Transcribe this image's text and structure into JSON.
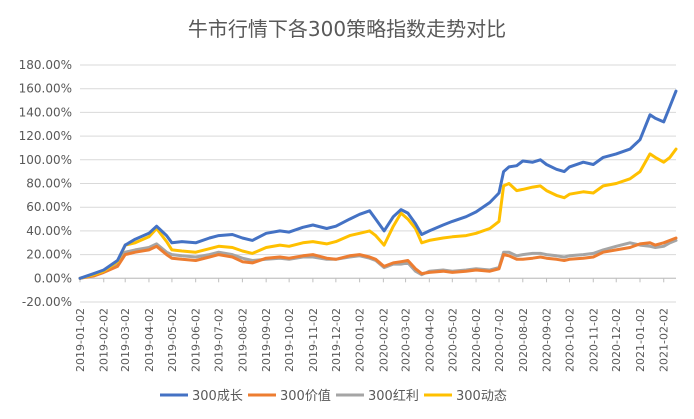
{
  "chart_data": {
    "type": "line",
    "title": "牛市行情下各300策略指数走势对比",
    "xlabel": "",
    "ylabel": "",
    "ylim": [
      -0.2,
      1.8
    ],
    "y_ticks": [
      "-20.00%",
      "0.00%",
      "20.00%",
      "40.00%",
      "60.00%",
      "80.00%",
      "100.00%",
      "120.00%",
      "140.00%",
      "160.00%",
      "180.00%"
    ],
    "y_tick_values": [
      -0.2,
      0,
      0.2,
      0.4,
      0.6,
      0.8,
      1.0,
      1.2,
      1.4,
      1.6,
      1.8
    ],
    "x_ticks": [
      "2019-01-02",
      "2019-02-02",
      "2019-03-02",
      "2019-04-02",
      "2019-05-02",
      "2019-06-02",
      "2019-07-02",
      "2019-08-02",
      "2019-09-02",
      "2019-10-02",
      "2019-11-02",
      "2019-12-02",
      "2020-01-02",
      "2020-02-02",
      "2020-03-02",
      "2020-04-02",
      "2020-05-02",
      "2020-06-02",
      "2020-07-02",
      "2020-08-02",
      "2020-09-02",
      "2020-10-02",
      "2020-11-02",
      "2020-12-02",
      "2021-01-02",
      "2021-02-02"
    ],
    "x_range": [
      "2019-01-02",
      "2021-02-18"
    ],
    "grid": true,
    "legend_position": "bottom",
    "colors": {
      "300成长": "#4472C4",
      "300价值": "#ED7D31",
      "300红利": "#A5A5A5",
      "300动态": "#FFC000",
      "grid": "#D9D9D9",
      "axis_text": "#595959",
      "title": "#595959"
    },
    "series": [
      {
        "name": "300成长",
        "points": [
          [
            "2019-01-02",
            0.0
          ],
          [
            "2019-01-20",
            0.04
          ],
          [
            "2019-02-02",
            0.07
          ],
          [
            "2019-02-20",
            0.15
          ],
          [
            "2019-03-02",
            0.28
          ],
          [
            "2019-03-15",
            0.33
          ],
          [
            "2019-04-02",
            0.38
          ],
          [
            "2019-04-12",
            0.44
          ],
          [
            "2019-04-25",
            0.36
          ],
          [
            "2019-05-02",
            0.3
          ],
          [
            "2019-05-15",
            0.31
          ],
          [
            "2019-06-02",
            0.3
          ],
          [
            "2019-06-20",
            0.34
          ],
          [
            "2019-07-02",
            0.36
          ],
          [
            "2019-07-20",
            0.37
          ],
          [
            "2019-08-02",
            0.34
          ],
          [
            "2019-08-15",
            0.32
          ],
          [
            "2019-09-02",
            0.38
          ],
          [
            "2019-09-20",
            0.4
          ],
          [
            "2019-10-02",
            0.39
          ],
          [
            "2019-10-20",
            0.43
          ],
          [
            "2019-11-02",
            0.45
          ],
          [
            "2019-11-20",
            0.42
          ],
          [
            "2019-12-02",
            0.44
          ],
          [
            "2019-12-20",
            0.5
          ],
          [
            "2020-01-02",
            0.54
          ],
          [
            "2020-01-15",
            0.57
          ],
          [
            "2020-01-23",
            0.5
          ],
          [
            "2020-02-03",
            0.4
          ],
          [
            "2020-02-15",
            0.52
          ],
          [
            "2020-02-25",
            0.58
          ],
          [
            "2020-03-05",
            0.55
          ],
          [
            "2020-03-15",
            0.46
          ],
          [
            "2020-03-23",
            0.37
          ],
          [
            "2020-04-02",
            0.4
          ],
          [
            "2020-04-20",
            0.45
          ],
          [
            "2020-05-02",
            0.48
          ],
          [
            "2020-05-20",
            0.52
          ],
          [
            "2020-06-02",
            0.56
          ],
          [
            "2020-06-20",
            0.64
          ],
          [
            "2020-07-02",
            0.72
          ],
          [
            "2020-07-08",
            0.9
          ],
          [
            "2020-07-15",
            0.94
          ],
          [
            "2020-07-25",
            0.95
          ],
          [
            "2020-08-02",
            0.99
          ],
          [
            "2020-08-15",
            0.98
          ],
          [
            "2020-08-25",
            1.0
          ],
          [
            "2020-09-02",
            0.96
          ],
          [
            "2020-09-15",
            0.92
          ],
          [
            "2020-09-25",
            0.9
          ],
          [
            "2020-10-02",
            0.94
          ],
          [
            "2020-10-20",
            0.98
          ],
          [
            "2020-11-02",
            0.96
          ],
          [
            "2020-11-15",
            1.02
          ],
          [
            "2020-12-02",
            1.05
          ],
          [
            "2020-12-20",
            1.09
          ],
          [
            "2021-01-02",
            1.17
          ],
          [
            "2021-01-15",
            1.38
          ],
          [
            "2021-01-22",
            1.35
          ],
          [
            "2021-02-02",
            1.32
          ],
          [
            "2021-02-10",
            1.45
          ],
          [
            "2021-02-18",
            1.58
          ]
        ]
      },
      {
        "name": "300价值",
        "points": [
          [
            "2019-01-02",
            0.0
          ],
          [
            "2019-01-20",
            0.02
          ],
          [
            "2019-02-02",
            0.05
          ],
          [
            "2019-02-20",
            0.1
          ],
          [
            "2019-03-02",
            0.2
          ],
          [
            "2019-03-15",
            0.22
          ],
          [
            "2019-04-02",
            0.24
          ],
          [
            "2019-04-12",
            0.27
          ],
          [
            "2019-04-25",
            0.2
          ],
          [
            "2019-05-02",
            0.17
          ],
          [
            "2019-05-15",
            0.16
          ],
          [
            "2019-06-02",
            0.15
          ],
          [
            "2019-06-20",
            0.18
          ],
          [
            "2019-07-02",
            0.2
          ],
          [
            "2019-07-20",
            0.18
          ],
          [
            "2019-08-02",
            0.14
          ],
          [
            "2019-08-15",
            0.13
          ],
          [
            "2019-09-02",
            0.17
          ],
          [
            "2019-09-20",
            0.18
          ],
          [
            "2019-10-02",
            0.17
          ],
          [
            "2019-10-20",
            0.19
          ],
          [
            "2019-11-02",
            0.2
          ],
          [
            "2019-11-20",
            0.17
          ],
          [
            "2019-12-02",
            0.16
          ],
          [
            "2019-12-20",
            0.19
          ],
          [
            "2020-01-02",
            0.2
          ],
          [
            "2020-01-15",
            0.18
          ],
          [
            "2020-01-23",
            0.16
          ],
          [
            "2020-02-03",
            0.1
          ],
          [
            "2020-02-15",
            0.13
          ],
          [
            "2020-02-25",
            0.14
          ],
          [
            "2020-03-05",
            0.15
          ],
          [
            "2020-03-15",
            0.08
          ],
          [
            "2020-03-23",
            0.04
          ],
          [
            "2020-04-02",
            0.05
          ],
          [
            "2020-04-20",
            0.06
          ],
          [
            "2020-05-02",
            0.05
          ],
          [
            "2020-05-20",
            0.06
          ],
          [
            "2020-06-02",
            0.07
          ],
          [
            "2020-06-20",
            0.06
          ],
          [
            "2020-07-02",
            0.08
          ],
          [
            "2020-07-08",
            0.2
          ],
          [
            "2020-07-15",
            0.19
          ],
          [
            "2020-07-25",
            0.16
          ],
          [
            "2020-08-02",
            0.16
          ],
          [
            "2020-08-15",
            0.17
          ],
          [
            "2020-08-25",
            0.18
          ],
          [
            "2020-09-02",
            0.17
          ],
          [
            "2020-09-15",
            0.16
          ],
          [
            "2020-09-25",
            0.15
          ],
          [
            "2020-10-02",
            0.16
          ],
          [
            "2020-10-20",
            0.17
          ],
          [
            "2020-11-02",
            0.18
          ],
          [
            "2020-11-15",
            0.22
          ],
          [
            "2020-12-02",
            0.24
          ],
          [
            "2020-12-20",
            0.26
          ],
          [
            "2021-01-02",
            0.29
          ],
          [
            "2021-01-15",
            0.3
          ],
          [
            "2021-01-22",
            0.28
          ],
          [
            "2021-02-02",
            0.3
          ],
          [
            "2021-02-10",
            0.32
          ],
          [
            "2021-02-18",
            0.34
          ]
        ]
      },
      {
        "name": "300红利",
        "points": [
          [
            "2019-01-02",
            0.0
          ],
          [
            "2019-01-20",
            0.03
          ],
          [
            "2019-02-02",
            0.06
          ],
          [
            "2019-02-20",
            0.12
          ],
          [
            "2019-03-02",
            0.22
          ],
          [
            "2019-03-15",
            0.24
          ],
          [
            "2019-04-02",
            0.26
          ],
          [
            "2019-04-12",
            0.29
          ],
          [
            "2019-04-25",
            0.22
          ],
          [
            "2019-05-02",
            0.2
          ],
          [
            "2019-05-15",
            0.19
          ],
          [
            "2019-06-02",
            0.18
          ],
          [
            "2019-06-20",
            0.2
          ],
          [
            "2019-07-02",
            0.22
          ],
          [
            "2019-07-20",
            0.2
          ],
          [
            "2019-08-02",
            0.17
          ],
          [
            "2019-08-15",
            0.15
          ],
          [
            "2019-09-02",
            0.16
          ],
          [
            "2019-09-20",
            0.17
          ],
          [
            "2019-10-02",
            0.16
          ],
          [
            "2019-10-20",
            0.18
          ],
          [
            "2019-11-02",
            0.18
          ],
          [
            "2019-11-20",
            0.16
          ],
          [
            "2019-12-02",
            0.16
          ],
          [
            "2019-12-20",
            0.18
          ],
          [
            "2020-01-02",
            0.19
          ],
          [
            "2020-01-15",
            0.17
          ],
          [
            "2020-01-23",
            0.15
          ],
          [
            "2020-02-03",
            0.09
          ],
          [
            "2020-02-15",
            0.12
          ],
          [
            "2020-02-25",
            0.12
          ],
          [
            "2020-03-05",
            0.13
          ],
          [
            "2020-03-15",
            0.06
          ],
          [
            "2020-03-23",
            0.03
          ],
          [
            "2020-04-02",
            0.06
          ],
          [
            "2020-04-20",
            0.07
          ],
          [
            "2020-05-02",
            0.06
          ],
          [
            "2020-05-20",
            0.07
          ],
          [
            "2020-06-02",
            0.08
          ],
          [
            "2020-06-20",
            0.07
          ],
          [
            "2020-07-02",
            0.09
          ],
          [
            "2020-07-08",
            0.22
          ],
          [
            "2020-07-15",
            0.22
          ],
          [
            "2020-07-25",
            0.19
          ],
          [
            "2020-08-02",
            0.2
          ],
          [
            "2020-08-15",
            0.21
          ],
          [
            "2020-08-25",
            0.21
          ],
          [
            "2020-09-02",
            0.2
          ],
          [
            "2020-09-15",
            0.19
          ],
          [
            "2020-09-25",
            0.18
          ],
          [
            "2020-10-02",
            0.19
          ],
          [
            "2020-10-20",
            0.2
          ],
          [
            "2020-11-02",
            0.21
          ],
          [
            "2020-11-15",
            0.24
          ],
          [
            "2020-12-02",
            0.27
          ],
          [
            "2020-12-20",
            0.3
          ],
          [
            "2021-01-02",
            0.28
          ],
          [
            "2021-01-15",
            0.27
          ],
          [
            "2021-01-22",
            0.26
          ],
          [
            "2021-02-02",
            0.27
          ],
          [
            "2021-02-10",
            0.3
          ],
          [
            "2021-02-18",
            0.32
          ]
        ]
      },
      {
        "name": "300动态",
        "points": [
          [
            "2019-01-02",
            0.0
          ],
          [
            "2019-01-20",
            0.03
          ],
          [
            "2019-02-02",
            0.06
          ],
          [
            "2019-02-20",
            0.14
          ],
          [
            "2019-03-02",
            0.28
          ],
          [
            "2019-03-15",
            0.3
          ],
          [
            "2019-04-02",
            0.35
          ],
          [
            "2019-04-12",
            0.42
          ],
          [
            "2019-04-25",
            0.31
          ],
          [
            "2019-05-02",
            0.24
          ],
          [
            "2019-05-15",
            0.23
          ],
          [
            "2019-06-02",
            0.22
          ],
          [
            "2019-06-20",
            0.25
          ],
          [
            "2019-07-02",
            0.27
          ],
          [
            "2019-07-20",
            0.26
          ],
          [
            "2019-08-02",
            0.23
          ],
          [
            "2019-08-15",
            0.21
          ],
          [
            "2019-09-02",
            0.26
          ],
          [
            "2019-09-20",
            0.28
          ],
          [
            "2019-10-02",
            0.27
          ],
          [
            "2019-10-20",
            0.3
          ],
          [
            "2019-11-02",
            0.31
          ],
          [
            "2019-11-20",
            0.29
          ],
          [
            "2019-12-02",
            0.31
          ],
          [
            "2019-12-20",
            0.36
          ],
          [
            "2020-01-02",
            0.38
          ],
          [
            "2020-01-15",
            0.4
          ],
          [
            "2020-01-23",
            0.36
          ],
          [
            "2020-02-03",
            0.28
          ],
          [
            "2020-02-15",
            0.44
          ],
          [
            "2020-02-25",
            0.55
          ],
          [
            "2020-03-05",
            0.5
          ],
          [
            "2020-03-15",
            0.42
          ],
          [
            "2020-03-23",
            0.3
          ],
          [
            "2020-04-02",
            0.32
          ],
          [
            "2020-04-20",
            0.34
          ],
          [
            "2020-05-02",
            0.35
          ],
          [
            "2020-05-20",
            0.36
          ],
          [
            "2020-06-02",
            0.38
          ],
          [
            "2020-06-20",
            0.42
          ],
          [
            "2020-07-02",
            0.48
          ],
          [
            "2020-07-08",
            0.78
          ],
          [
            "2020-07-15",
            0.8
          ],
          [
            "2020-07-25",
            0.74
          ],
          [
            "2020-08-02",
            0.75
          ],
          [
            "2020-08-15",
            0.77
          ],
          [
            "2020-08-25",
            0.78
          ],
          [
            "2020-09-02",
            0.74
          ],
          [
            "2020-09-15",
            0.7
          ],
          [
            "2020-09-25",
            0.68
          ],
          [
            "2020-10-02",
            0.71
          ],
          [
            "2020-10-20",
            0.73
          ],
          [
            "2020-11-02",
            0.72
          ],
          [
            "2020-11-15",
            0.78
          ],
          [
            "2020-12-02",
            0.8
          ],
          [
            "2020-12-20",
            0.84
          ],
          [
            "2021-01-02",
            0.9
          ],
          [
            "2021-01-15",
            1.05
          ],
          [
            "2021-01-22",
            1.02
          ],
          [
            "2021-02-02",
            0.98
          ],
          [
            "2021-02-10",
            1.02
          ],
          [
            "2021-02-18",
            1.09
          ]
        ]
      }
    ]
  }
}
